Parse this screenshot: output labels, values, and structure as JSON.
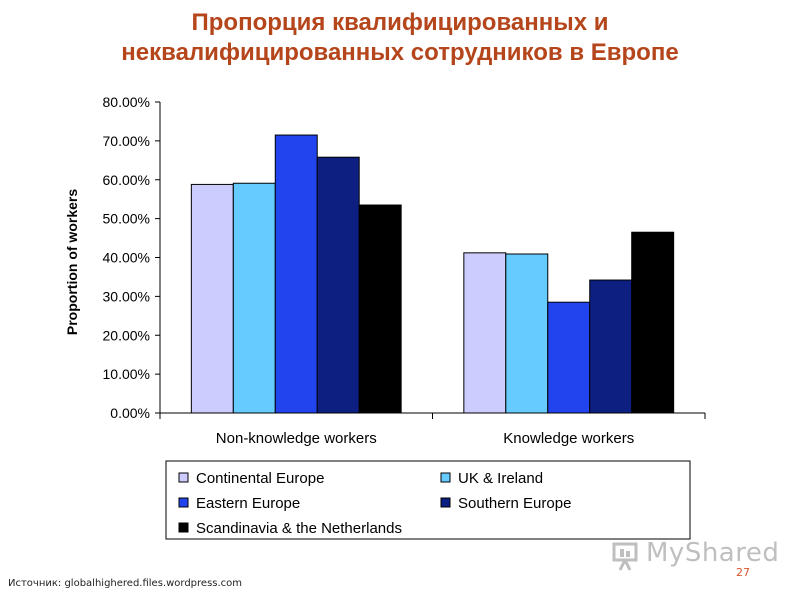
{
  "slide": {
    "title_line1": "Пропорция квалифицированных и",
    "title_line2": "неквалифицированных сотрудников в Европе",
    "source": "Источник: globalhighered.files.wordpress.com",
    "page_number": "27",
    "watermark": "MyShared",
    "accent_color": "#b5451b"
  },
  "chart_data": {
    "type": "bar",
    "title": "",
    "xlabel": "",
    "ylabel": "Proportion of workers",
    "ylim": [
      0,
      0.8
    ],
    "yticks": [
      0,
      0.1,
      0.2,
      0.3,
      0.4,
      0.5,
      0.6,
      0.7,
      0.8
    ],
    "ytick_labels": [
      "0.00%",
      "10.00%",
      "20.00%",
      "30.00%",
      "40.00%",
      "50.00%",
      "60.00%",
      "70.00%",
      "80.00%"
    ],
    "categories": [
      "Non-knowledge workers",
      "Knowledge workers"
    ],
    "series": [
      {
        "name": "Continental Europe",
        "color": "#ccccff",
        "values": [
          0.588,
          0.412
        ]
      },
      {
        "name": "UK & Ireland",
        "color": "#66ccff",
        "values": [
          0.591,
          0.409
        ]
      },
      {
        "name": "Eastern Europe",
        "color": "#2244ee",
        "values": [
          0.715,
          0.285
        ]
      },
      {
        "name": "Southern Europe",
        "color": "#0d1f80",
        "values": [
          0.658,
          0.342
        ]
      },
      {
        "name": "Scandinavia & the Netherlands",
        "color": "#000000",
        "values": [
          0.535,
          0.465
        ]
      }
    ],
    "grid": false,
    "legend_position": "bottom"
  }
}
